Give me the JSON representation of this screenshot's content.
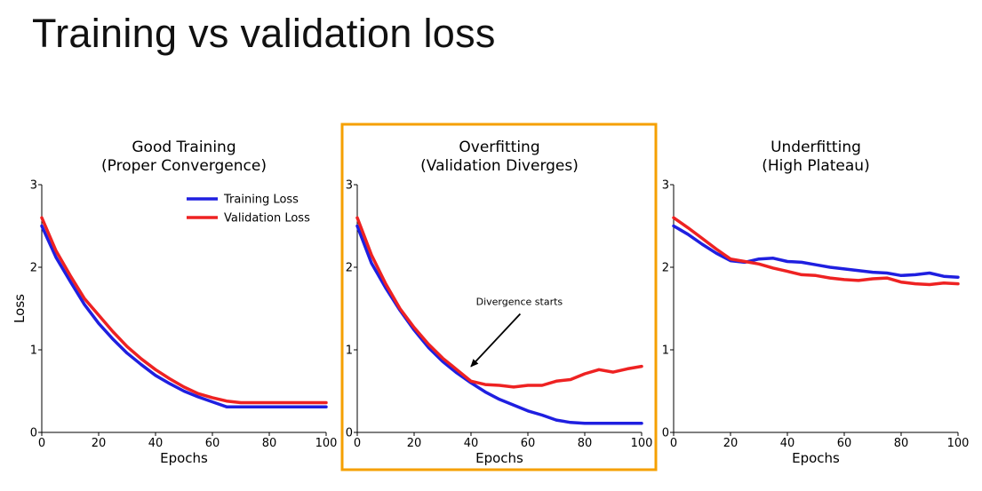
{
  "page": {
    "title": "Training vs validation loss"
  },
  "colors": {
    "training": "#1f1fe0",
    "validation": "#ee2222",
    "highlight": "#f5a000"
  },
  "chart_data": [
    {
      "type": "line",
      "title": [
        "Good Training",
        "(Proper Convergence)"
      ],
      "xlabel": "Epochs",
      "ylabel": "Loss",
      "xlim": [
        0,
        100
      ],
      "ylim": [
        0,
        3
      ],
      "xticks": [
        0,
        20,
        40,
        60,
        80,
        100
      ],
      "yticks": [
        0,
        1,
        2,
        3
      ],
      "legend": "top-right",
      "highlighted": false,
      "series": [
        {
          "name": "Training Loss",
          "color": "#1f1fe0",
          "x": [
            0,
            5,
            10,
            15,
            20,
            25,
            30,
            35,
            40,
            45,
            50,
            55,
            60,
            65,
            70,
            75,
            80,
            85,
            90,
            95,
            100
          ],
          "y": [
            2.5,
            2.12,
            1.83,
            1.55,
            1.32,
            1.13,
            0.96,
            0.82,
            0.69,
            0.59,
            0.5,
            0.43,
            0.37,
            0.31,
            0.31,
            0.31,
            0.31,
            0.31,
            0.31,
            0.31,
            0.31
          ]
        },
        {
          "name": "Validation Loss",
          "color": "#ee2222",
          "x": [
            0,
            5,
            10,
            15,
            20,
            25,
            30,
            35,
            40,
            45,
            50,
            55,
            60,
            65,
            70,
            75,
            80,
            85,
            90,
            95,
            100
          ],
          "y": [
            2.6,
            2.2,
            1.9,
            1.62,
            1.42,
            1.22,
            1.04,
            0.89,
            0.76,
            0.65,
            0.55,
            0.47,
            0.42,
            0.38,
            0.36,
            0.36,
            0.36,
            0.36,
            0.36,
            0.36,
            0.36
          ]
        }
      ],
      "annotation": null
    },
    {
      "type": "line",
      "title": [
        "Overfitting",
        "(Validation Diverges)"
      ],
      "xlabel": "Epochs",
      "ylabel": "",
      "xlim": [
        0,
        100
      ],
      "ylim": [
        0,
        3
      ],
      "xticks": [
        0,
        20,
        40,
        60,
        80,
        100
      ],
      "yticks": [
        0,
        1,
        2,
        3
      ],
      "legend": null,
      "highlighted": true,
      "series": [
        {
          "name": "",
          "color": "#1f1fe0",
          "x": [
            0,
            5,
            10,
            15,
            20,
            25,
            30,
            35,
            40,
            45,
            50,
            55,
            60,
            65,
            70,
            75,
            80,
            85,
            90,
            95,
            100
          ],
          "y": [
            2.5,
            2.05,
            1.75,
            1.48,
            1.24,
            1.03,
            0.86,
            0.72,
            0.6,
            0.49,
            0.4,
            0.33,
            0.26,
            0.21,
            0.15,
            0.12,
            0.11,
            0.11,
            0.11,
            0.11,
            0.11
          ]
        },
        {
          "name": "",
          "color": "#ee2222",
          "x": [
            0,
            5,
            10,
            15,
            20,
            25,
            30,
            35,
            40,
            45,
            50,
            55,
            60,
            65,
            70,
            75,
            80,
            85,
            90,
            95,
            100
          ],
          "y": [
            2.6,
            2.15,
            1.8,
            1.5,
            1.27,
            1.07,
            0.9,
            0.76,
            0.62,
            0.58,
            0.57,
            0.55,
            0.57,
            0.57,
            0.62,
            0.64,
            0.71,
            0.76,
            0.73,
            0.77,
            0.8
          ]
        }
      ],
      "annotation": {
        "text": "Divergence starts",
        "text_x": 57,
        "text_y": 1.5,
        "point_x": 40,
        "point_y": 0.82
      }
    },
    {
      "type": "line",
      "title": [
        "Underfitting",
        "(High Plateau)"
      ],
      "xlabel": "Epochs",
      "ylabel": "",
      "xlim": [
        0,
        100
      ],
      "ylim": [
        0,
        3
      ],
      "xticks": [
        0,
        20,
        40,
        60,
        80,
        100
      ],
      "yticks": [
        0,
        1,
        2,
        3
      ],
      "legend": null,
      "highlighted": false,
      "series": [
        {
          "name": "",
          "color": "#1f1fe0",
          "x": [
            0,
            5,
            10,
            15,
            20,
            25,
            30,
            35,
            40,
            45,
            50,
            55,
            60,
            65,
            70,
            75,
            80,
            85,
            90,
            95,
            100
          ],
          "y": [
            2.5,
            2.4,
            2.28,
            2.17,
            2.08,
            2.06,
            2.1,
            2.11,
            2.07,
            2.06,
            2.03,
            2.0,
            1.98,
            1.96,
            1.94,
            1.93,
            1.9,
            1.91,
            1.93,
            1.89,
            1.88
          ]
        },
        {
          "name": "",
          "color": "#ee2222",
          "x": [
            0,
            5,
            10,
            15,
            20,
            25,
            30,
            35,
            40,
            45,
            50,
            55,
            60,
            65,
            70,
            75,
            80,
            85,
            90,
            95,
            100
          ],
          "y": [
            2.6,
            2.48,
            2.35,
            2.22,
            2.1,
            2.07,
            2.04,
            1.99,
            1.95,
            1.91,
            1.9,
            1.87,
            1.85,
            1.84,
            1.86,
            1.87,
            1.82,
            1.8,
            1.79,
            1.81,
            1.8
          ]
        }
      ],
      "annotation": null
    }
  ]
}
